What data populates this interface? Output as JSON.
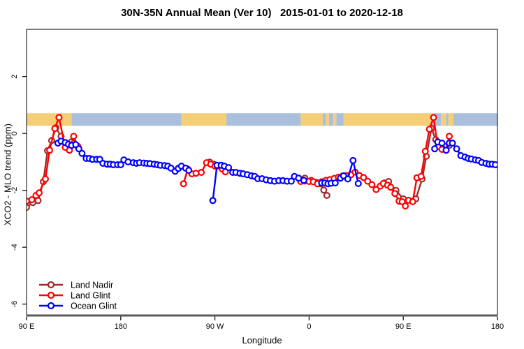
{
  "chart_data": {
    "type": "line",
    "title": "30N-35N Annual Mean (Ver 10)   2015-01-01 to 2020-12-18",
    "xlabel": "Longitude",
    "ylabel": "XCO2 - MLO trend (ppm)",
    "xlim": [
      90,
      540
    ],
    "ylim": [
      -6.4,
      3.66
    ],
    "grid": "off",
    "x_ticks": [
      {
        "lon": 90,
        "label": "90 E"
      },
      {
        "lon": 180,
        "label": "180"
      },
      {
        "lon": 270,
        "label": "90 W"
      },
      {
        "lon": 360,
        "label": "0"
      },
      {
        "lon": 450,
        "label": "90 E"
      },
      {
        "lon": 540,
        "label": "180"
      }
    ],
    "y_ticks": [
      {
        "v": 2,
        "label": "2"
      },
      {
        "v": 0,
        "label": "0"
      },
      {
        "v": -2,
        "label": "-2"
      },
      {
        "v": -4,
        "label": "-4"
      },
      {
        "v": -6,
        "label": "-6"
      }
    ],
    "map_band": {
      "description": "land/ocean strip for 30N-35N latitude band",
      "colors": {
        "land": "#F7CE78",
        "ocean": "#A9BFDC"
      },
      "ppm_top": 0.71,
      "ppm_bottom": 0.27,
      "segments": [
        [
          90,
          133,
          "land"
        ],
        [
          133,
          238,
          "ocean"
        ],
        [
          238,
          281,
          "land"
        ],
        [
          281,
          352,
          "ocean"
        ],
        [
          352,
          373,
          "land"
        ],
        [
          373,
          376,
          "ocean"
        ],
        [
          376,
          379,
          "land"
        ],
        [
          379,
          383,
          "ocean"
        ],
        [
          383,
          386,
          "land"
        ],
        [
          386,
          393,
          "ocean"
        ],
        [
          393,
          478,
          "land"
        ],
        [
          478,
          486,
          "ocean"
        ],
        [
          486,
          491,
          "land"
        ],
        [
          491,
          493,
          "ocean"
        ],
        [
          493,
          498,
          "land"
        ],
        [
          498,
          540,
          "ocean"
        ]
      ]
    },
    "series": [
      {
        "name": "Land Nadir",
        "color": "#A02C2C",
        "segments": [
          [
            [
              90,
              -2.6
            ],
            [
              96,
              -2.43
            ],
            [
              101,
              -2.36
            ],
            [
              106,
              -1.7
            ],
            [
              110,
              -0.61
            ],
            [
              114,
              -0.25
            ],
            [
              118,
              0.2
            ],
            [
              123,
              -0.1
            ],
            [
              127,
              -0.34
            ],
            [
              133,
              -0.29
            ],
            [
              139,
              -0.47
            ]
          ],
          [
            [
              265,
              -1.01
            ],
            [
              269,
              -1.08
            ],
            [
              272,
              -1.15
            ]
          ],
          [
            [
              356,
              -1.57
            ],
            [
              362,
              -1.65
            ],
            [
              367,
              -1.72
            ],
            [
              371,
              -1.77
            ],
            [
              374,
              -1.99
            ],
            [
              377,
              -2.18
            ]
          ],
          [
            [
              432,
              -1.74
            ],
            [
              436,
              -1.69
            ],
            [
              443,
              -2.0
            ],
            [
              450,
              -2.3
            ],
            [
              459,
              -2.38
            ],
            [
              462,
              -2.3
            ],
            [
              468,
              -1.6
            ],
            [
              472,
              -0.8
            ],
            [
              477,
              0.18
            ],
            [
              481,
              -0.22
            ],
            [
              485,
              -0.35
            ],
            [
              490,
              -0.46
            ],
            [
              494,
              -0.42
            ]
          ]
        ]
      },
      {
        "name": "Land Glint",
        "color": "#FF0000",
        "segments": [
          [
            [
              90,
              -2.38
            ],
            [
              95,
              -2.33
            ],
            [
              99,
              -2.18
            ],
            [
              102,
              -2.09
            ],
            [
              108,
              -1.6
            ],
            [
              112,
              -0.59
            ],
            [
              117,
              0.17
            ],
            [
              121,
              0.56
            ],
            [
              127,
              -0.49
            ],
            [
              131,
              -0.59
            ],
            [
              135,
              -0.1
            ],
            [
              139,
              -0.45
            ]
          ],
          [
            [
              240,
              -1.77
            ],
            [
              244,
              -1.25
            ],
            [
              248,
              -1.42
            ],
            [
              252,
              -1.4
            ],
            [
              257,
              -1.37
            ],
            [
              262,
              -1.03
            ],
            [
              266,
              -1.08
            ],
            [
              270,
              -1.15
            ],
            [
              274,
              -1.13
            ],
            [
              277,
              -1.25
            ],
            [
              280,
              -1.35
            ]
          ],
          [
            [
              352,
              -1.69
            ],
            [
              356,
              -1.67
            ],
            [
              360,
              -1.69
            ],
            [
              364,
              -1.7
            ],
            [
              368,
              -1.77
            ],
            [
              372,
              -1.7
            ],
            [
              376,
              -1.65
            ],
            [
              380,
              -1.62
            ],
            [
              384,
              -1.58
            ],
            [
              388,
              -1.54
            ],
            [
              392,
              -1.5
            ],
            [
              396,
              -1.48
            ],
            [
              400,
              -1.45
            ],
            [
              404,
              -1.36
            ],
            [
              408,
              -1.48
            ],
            [
              412,
              -1.55
            ],
            [
              416,
              -1.68
            ],
            [
              420,
              -1.8
            ],
            [
              424,
              -1.97
            ],
            [
              428,
              -1.85
            ],
            [
              431,
              -1.76
            ],
            [
              435,
              -1.82
            ],
            [
              438,
              -1.89
            ],
            [
              442,
              -2.11
            ],
            [
              446,
              -2.38
            ],
            [
              449,
              -2.4
            ],
            [
              452,
              -2.55
            ],
            [
              455,
              -2.35
            ],
            [
              459,
              -2.4
            ],
            [
              463,
              -1.56
            ],
            [
              467,
              -1.51
            ],
            [
              471,
              -0.63
            ],
            [
              475,
              0.15
            ],
            [
              479,
              0.56
            ],
            [
              483,
              -0.46
            ],
            [
              487,
              -0.56
            ],
            [
              491,
              -0.59
            ],
            [
              494,
              -0.1
            ]
          ]
        ]
      },
      {
        "name": "Ocean Glint",
        "color": "#0000FF",
        "segments": [
          [
            [
              120,
              -0.34
            ],
            [
              123,
              -0.27
            ],
            [
              127,
              -0.32
            ],
            [
              130,
              -0.38
            ],
            [
              133,
              -0.42
            ],
            [
              137,
              -0.39
            ],
            [
              140,
              -0.54
            ],
            [
              143,
              -0.7
            ],
            [
              147,
              -0.88
            ],
            [
              150,
              -0.88
            ],
            [
              153,
              -0.91
            ],
            [
              157,
              -0.91
            ],
            [
              160,
              -0.91
            ],
            [
              163,
              -1.05
            ],
            [
              167,
              -1.08
            ],
            [
              170,
              -1.08
            ],
            [
              173,
              -1.1
            ],
            [
              177,
              -1.1
            ],
            [
              180,
              -1.1
            ],
            [
              183,
              -0.93
            ],
            [
              187,
              -1.0
            ],
            [
              192,
              -1.03
            ],
            [
              195,
              -1.05
            ],
            [
              198,
              -1.03
            ],
            [
              202,
              -1.04
            ],
            [
              205,
              -1.05
            ],
            [
              208,
              -1.06
            ],
            [
              212,
              -1.08
            ],
            [
              215,
              -1.1
            ],
            [
              218,
              -1.12
            ],
            [
              222,
              -1.13
            ],
            [
              225,
              -1.15
            ],
            [
              228,
              -1.22
            ],
            [
              232,
              -1.33
            ],
            [
              235,
              -1.23
            ],
            [
              238,
              -1.15
            ],
            [
              242,
              -1.22
            ],
            [
              245,
              -1.3
            ]
          ],
          [
            [
              268,
              -2.36
            ],
            [
              272,
              -1.12
            ],
            [
              276,
              -1.12
            ],
            [
              279,
              -1.15
            ],
            [
              283,
              -1.2
            ],
            [
              287,
              -1.37
            ],
            [
              290,
              -1.37
            ],
            [
              294,
              -1.4
            ],
            [
              297,
              -1.42
            ],
            [
              301,
              -1.45
            ],
            [
              305,
              -1.49
            ],
            [
              308,
              -1.51
            ],
            [
              311,
              -1.59
            ],
            [
              315,
              -1.59
            ],
            [
              319,
              -1.63
            ],
            [
              323,
              -1.66
            ],
            [
              327,
              -1.68
            ],
            [
              331,
              -1.66
            ],
            [
              335,
              -1.66
            ],
            [
              339,
              -1.68
            ],
            [
              343,
              -1.68
            ],
            [
              346,
              -1.51
            ],
            [
              350,
              -1.57
            ],
            [
              355,
              -1.65
            ]
          ],
          [
            [
              372,
              -1.74
            ],
            [
              375,
              -1.74
            ],
            [
              378,
              -1.77
            ],
            [
              381,
              -1.75
            ],
            [
              385,
              -1.74
            ],
            [
              390,
              -1.57
            ],
            [
              393,
              -1.49
            ],
            [
              397,
              -1.6
            ],
            [
              402,
              -0.95
            ],
            [
              407,
              -1.76
            ]
          ],
          [
            [
              480,
              -0.54
            ],
            [
              483,
              -0.3
            ],
            [
              487,
              -0.34
            ],
            [
              491,
              -0.59
            ],
            [
              494,
              -0.34
            ],
            [
              497,
              -0.34
            ],
            [
              501,
              -0.54
            ],
            [
              505,
              -0.78
            ],
            [
              509,
              -0.83
            ],
            [
              512,
              -0.88
            ],
            [
              515,
              -0.9
            ],
            [
              519,
              -0.93
            ],
            [
              522,
              -0.95
            ],
            [
              525,
              -1.02
            ],
            [
              529,
              -1.05
            ],
            [
              532,
              -1.08
            ],
            [
              535,
              -1.08
            ],
            [
              538,
              -1.1
            ]
          ]
        ]
      }
    ],
    "legend": {
      "position": "bottom-left",
      "items": [
        "Land Nadir",
        "Land Glint",
        "Ocean Glint"
      ]
    }
  }
}
